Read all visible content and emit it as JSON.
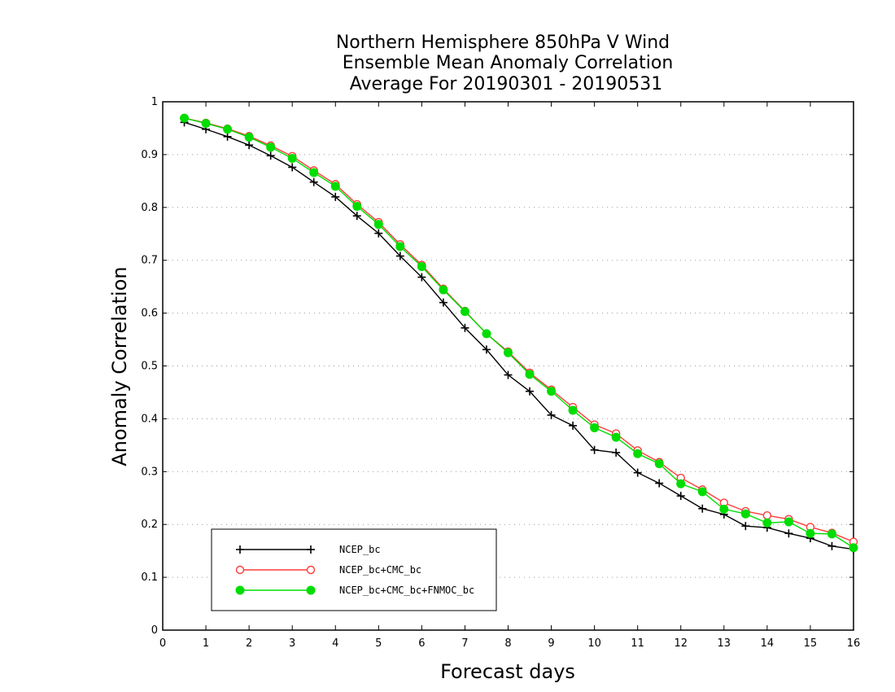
{
  "chart_data": {
    "type": "line",
    "title_lines": [
      "Northern Hemisphere 850hPa V Wind",
      "Ensemble Mean Anomaly Correlation",
      "Average For 20190301 - 20190531"
    ],
    "xlabel": "Forecast days",
    "ylabel": "Anomaly Correlation",
    "xlim": [
      0,
      16
    ],
    "ylim": [
      0,
      1
    ],
    "x_ticks": [
      0,
      1,
      2,
      3,
      4,
      5,
      6,
      7,
      8,
      9,
      10,
      11,
      12,
      13,
      14,
      15,
      16
    ],
    "y_ticks": [
      0,
      0.1,
      0.2,
      0.3,
      0.4,
      0.5,
      0.6,
      0.7,
      0.8,
      0.9,
      1
    ],
    "y_tick_labels": [
      "0",
      "0.1",
      "0.2",
      "0.3",
      "0.4",
      "0.5",
      "0.6",
      "0.7",
      "0.8",
      "0.9",
      "1"
    ],
    "grid": "horizontal-dotted",
    "legend_position": "bottom-left",
    "x": [
      0.5,
      1,
      1.5,
      2,
      2.5,
      3,
      3.5,
      4,
      4.5,
      5,
      5.5,
      6,
      6.5,
      7,
      7.5,
      8,
      8.5,
      9,
      9.5,
      10,
      10.5,
      11,
      11.5,
      12,
      12.5,
      13,
      13.5,
      14,
      14.5,
      15,
      15.5,
      16
    ],
    "series": [
      {
        "name": "NCEP_bc",
        "color": "#000000",
        "marker": "plus",
        "values": [
          0.961,
          0.948,
          0.934,
          0.918,
          0.898,
          0.876,
          0.848,
          0.82,
          0.784,
          0.751,
          0.708,
          0.668,
          0.62,
          0.572,
          0.531,
          0.483,
          0.452,
          0.407,
          0.387,
          0.341,
          0.336,
          0.298,
          0.278,
          0.254,
          0.23,
          0.219,
          0.197,
          0.194,
          0.183,
          0.174,
          0.159,
          0.153
        ]
      },
      {
        "name": "NCEP_bc+CMC_bc",
        "color": "#ff3b3b",
        "marker": "open-circle",
        "values": [
          0.969,
          0.96,
          0.949,
          0.935,
          0.917,
          0.897,
          0.87,
          0.844,
          0.806,
          0.772,
          0.73,
          0.691,
          0.646,
          0.604,
          0.561,
          0.527,
          0.487,
          0.455,
          0.422,
          0.389,
          0.372,
          0.34,
          0.318,
          0.288,
          0.266,
          0.241,
          0.225,
          0.217,
          0.21,
          0.195,
          0.184,
          0.167
        ]
      },
      {
        "name": "NCEP_bc+CMC_bc+FNMOC_bc",
        "color": "#00dd00",
        "marker": "filled-circle",
        "values": [
          0.969,
          0.959,
          0.948,
          0.933,
          0.914,
          0.893,
          0.866,
          0.84,
          0.802,
          0.768,
          0.726,
          0.688,
          0.644,
          0.603,
          0.561,
          0.525,
          0.484,
          0.452,
          0.416,
          0.383,
          0.365,
          0.334,
          0.315,
          0.277,
          0.262,
          0.229,
          0.22,
          0.203,
          0.205,
          0.183,
          0.182,
          0.156
        ]
      }
    ]
  }
}
